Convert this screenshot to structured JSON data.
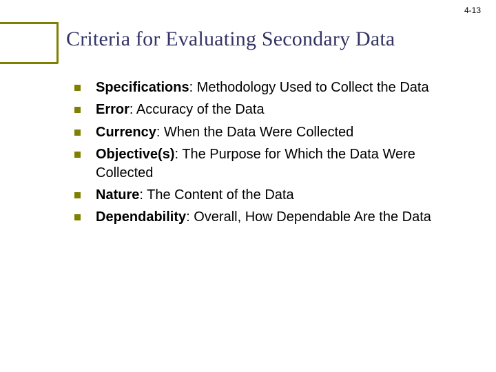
{
  "page_number": "4-13",
  "title": "Criteria for Evaluating Secondary Data",
  "title_color": "#333366",
  "title_fontsize": 30,
  "accent_color": "#808000",
  "background_color": "#ffffff",
  "body_fontsize": 20,
  "body_color": "#000000",
  "bullets": [
    {
      "term": "Specifications",
      "desc": ":  Methodology Used to Collect the Data"
    },
    {
      "term": "Error",
      "desc": ":  Accuracy of the Data"
    },
    {
      "term": "Currency",
      "desc": ":  When the Data Were Collected"
    },
    {
      "term": "Objective(s)",
      "desc": ":  The Purpose for Which the Data Were Collected"
    },
    {
      "term": "Nature",
      "desc": ":  The Content of the Data"
    },
    {
      "term": "Dependability",
      "desc": ":  Overall, How Dependable Are the Data"
    }
  ]
}
